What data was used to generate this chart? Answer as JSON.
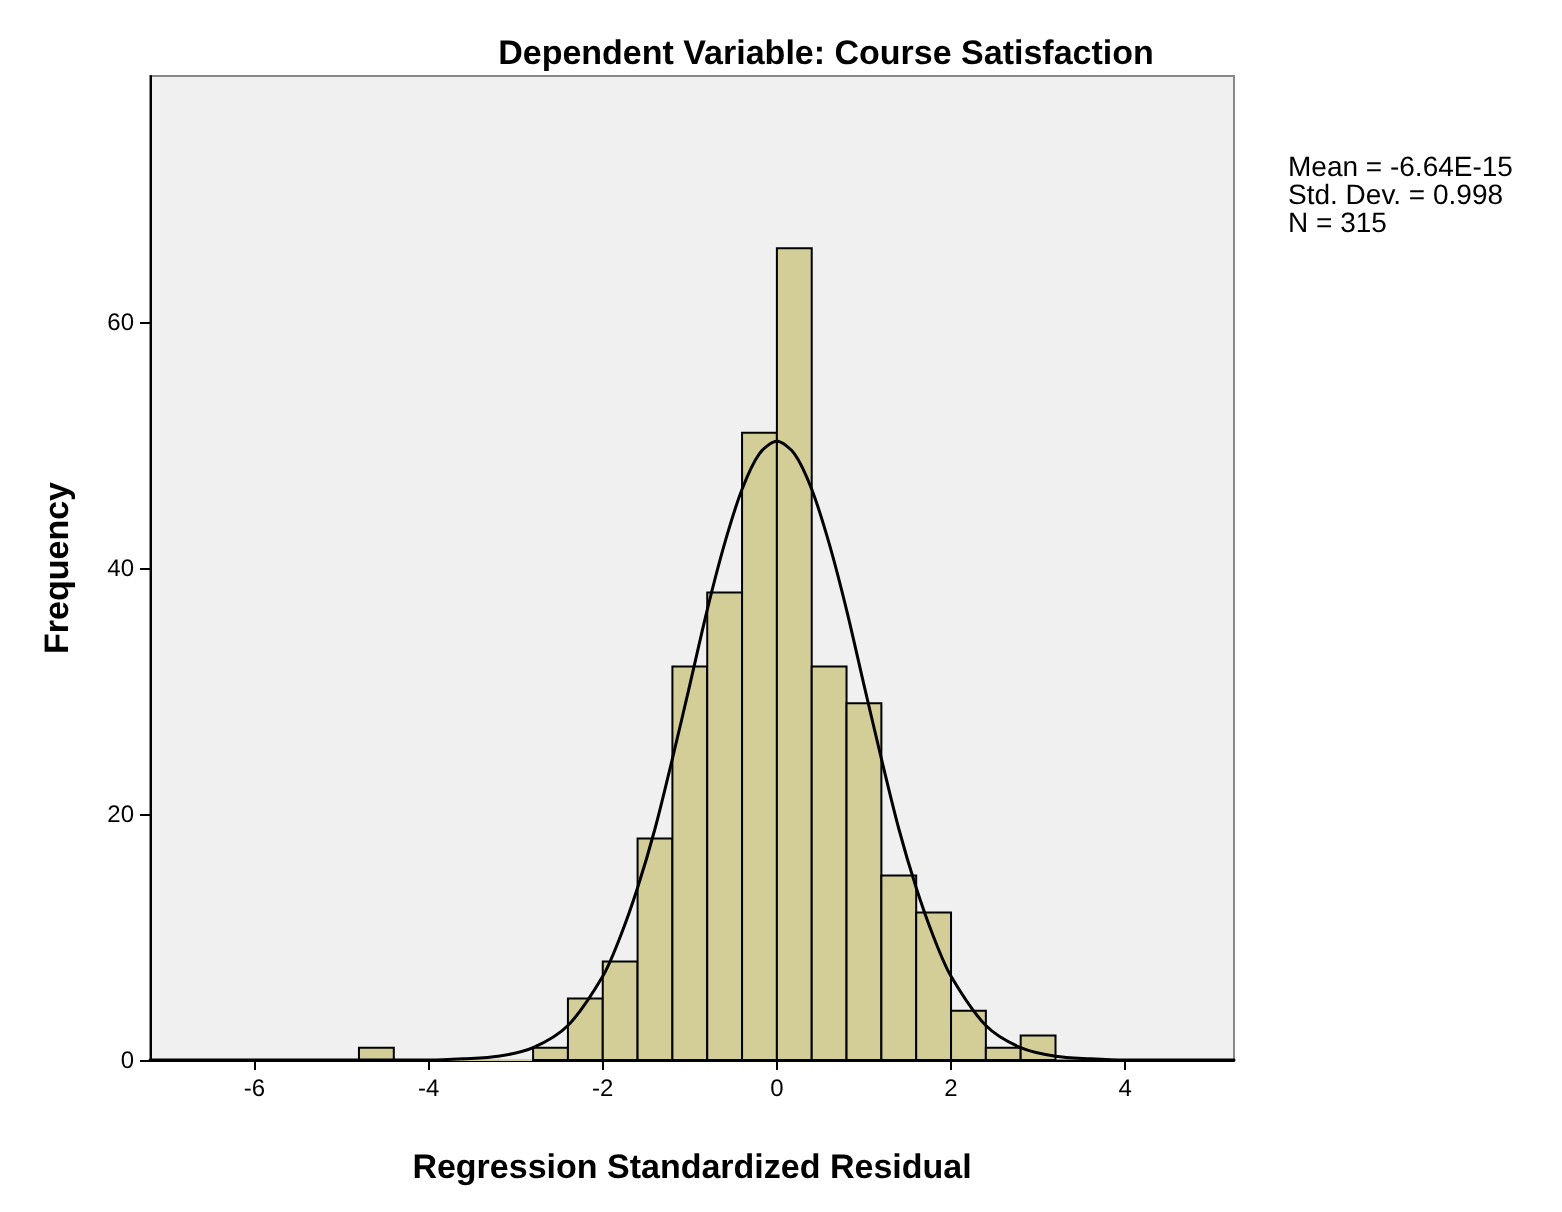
{
  "chart_data": {
    "type": "histogram",
    "title": "Dependent Variable: Course Satisfaction",
    "xlabel": "Regression Standardized Residual",
    "ylabel": "Frequency",
    "bins": [
      -4.8,
      -4.4,
      -4.0,
      -3.6,
      -3.2,
      -2.8,
      -2.4,
      -2.0,
      -1.6,
      -1.2,
      -0.8,
      -0.4,
      0,
      0.4,
      0.8,
      1.2,
      1.6,
      2.0,
      2.4,
      2.8,
      3.2
    ],
    "values": [
      1,
      0,
      0,
      0,
      0,
      1,
      5,
      8,
      18,
      32,
      38,
      51,
      66,
      32,
      29,
      15,
      12,
      4,
      1,
      2
    ],
    "color": "#d3ce97",
    "series": [
      {
        "type": "line",
        "color": "#000000",
        "x": [
          -7.2,
          -4.4,
          -4.0,
          -3.6,
          -3.2,
          -2.8,
          -2.4,
          -2.0,
          -1.8,
          -1.6,
          -1.4,
          -1.2,
          -1.0,
          -0.8,
          -0.6,
          -0.4,
          -0.2,
          0,
          0.2,
          0.4,
          0.6,
          0.8,
          1.0,
          1.2,
          1.4,
          1.6,
          1.8,
          2.0,
          2.4,
          2.8,
          3.2,
          3.6,
          4.0,
          5.25
        ],
        "values": [
          0,
          0,
          0,
          0.1,
          0.3,
          1,
          2.8,
          6.8,
          10,
          14,
          18.8,
          24.5,
          30.5,
          36.6,
          42,
          46.4,
          49.3,
          50.3,
          49.3,
          46.4,
          42,
          36.6,
          30.5,
          24.5,
          18.8,
          14,
          10,
          6.8,
          2.8,
          1,
          0.3,
          0.1,
          0,
          0
        ]
      }
    ],
    "xlim": [
      -7.2,
      5.25
    ],
    "ylim": [
      0,
      80
    ],
    "xticks": [
      -6,
      -4,
      -2,
      0,
      2,
      4
    ],
    "yticks": [
      0,
      20,
      40,
      60
    ],
    "grid": false,
    "annotations": [
      "Mean = -6.64E-15",
      "Std. Dev. = 0.998",
      "N = 315"
    ]
  }
}
